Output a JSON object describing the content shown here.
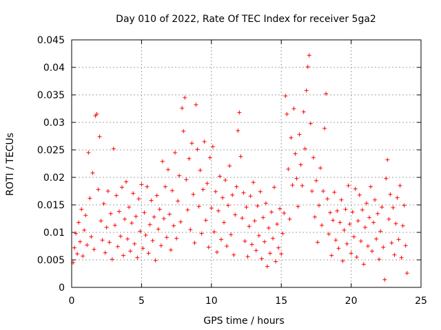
{
  "chart_data": {
    "type": "scatter",
    "title": "Day 010 of 2022, Rate Of TEC Index for receiver 5ga2",
    "xlabel": "GPS time / hours",
    "ylabel": "ROTI / TECUs",
    "xlim": [
      0,
      25
    ],
    "ylim": [
      0,
      0.045
    ],
    "xticks": [
      0,
      5,
      10,
      15,
      20,
      25
    ],
    "xtick_labels": [
      "0",
      "5",
      "10",
      "15",
      "20",
      "25"
    ],
    "yticks": [
      0,
      0.005,
      0.01,
      0.015,
      0.02,
      0.025,
      0.03,
      0.035,
      0.04,
      0.045
    ],
    "ytick_labels": [
      "0",
      "0.005",
      "0.01",
      "0.015",
      "0.02",
      "0.025",
      "0.03",
      "0.035",
      "0.04",
      "0.045"
    ],
    "grid": true,
    "marker": "+",
    "marker_color": "#ff0000",
    "series": [
      {
        "name": "ROTI",
        "points": [
          [
            0.1,
            0.0045
          ],
          [
            0.2,
            0.0072
          ],
          [
            0.3,
            0.0098
          ],
          [
            0.4,
            0.0061
          ],
          [
            0.5,
            0.0118
          ],
          [
            0.6,
            0.0083
          ],
          [
            0.7,
            0.0142
          ],
          [
            0.8,
            0.0057
          ],
          [
            0.9,
            0.0104
          ],
          [
            1.0,
            0.0131
          ],
          [
            1.1,
            0.0077
          ],
          [
            1.2,
            0.0245
          ],
          [
            1.3,
            0.0162
          ],
          [
            1.4,
            0.0092
          ],
          [
            1.5,
            0.0208
          ],
          [
            1.6,
            0.0069
          ],
          [
            1.7,
            0.0312
          ],
          [
            1.8,
            0.0315
          ],
          [
            1.9,
            0.0178
          ],
          [
            2.0,
            0.0274
          ],
          [
            2.1,
            0.0121
          ],
          [
            2.2,
            0.0086
          ],
          [
            2.3,
            0.0152
          ],
          [
            2.4,
            0.0063
          ],
          [
            2.5,
            0.0109
          ],
          [
            2.6,
            0.0175
          ],
          [
            2.7,
            0.0082
          ],
          [
            2.8,
            0.0134
          ],
          [
            2.9,
            0.0051
          ],
          [
            3.0,
            0.0252
          ],
          [
            3.1,
            0.0113
          ],
          [
            3.2,
            0.0167
          ],
          [
            3.3,
            0.0074
          ],
          [
            3.4,
            0.0138
          ],
          [
            3.5,
            0.0093
          ],
          [
            3.6,
            0.0182
          ],
          [
            3.7,
            0.0058
          ],
          [
            3.8,
            0.0124
          ],
          [
            3.9,
            0.0192
          ],
          [
            4.0,
            0.0088
          ],
          [
            4.1,
            0.0146
          ],
          [
            4.2,
            0.0066
          ],
          [
            4.3,
            0.0117
          ],
          [
            4.4,
            0.0171
          ],
          [
            4.5,
            0.0079
          ],
          [
            4.6,
            0.0129
          ],
          [
            4.7,
            0.0054
          ],
          [
            4.8,
            0.0161
          ],
          [
            4.9,
            0.0102
          ],
          [
            5.0,
            0.0187
          ],
          [
            5.1,
            0.0071
          ],
          [
            5.2,
            0.0136
          ],
          [
            5.3,
            0.0095
          ],
          [
            5.4,
            0.0183
          ],
          [
            5.5,
            0.0062
          ],
          [
            5.6,
            0.0114
          ],
          [
            5.7,
            0.0158
          ],
          [
            5.8,
            0.0085
          ],
          [
            5.9,
            0.0128
          ],
          [
            6.0,
            0.0049
          ],
          [
            6.1,
            0.0167
          ],
          [
            6.2,
            0.0106
          ],
          [
            6.3,
            0.0142
          ],
          [
            6.4,
            0.0076
          ],
          [
            6.5,
            0.0229
          ],
          [
            6.6,
            0.0125
          ],
          [
            6.7,
            0.0183
          ],
          [
            6.8,
            0.0091
          ],
          [
            6.9,
            0.0214
          ],
          [
            7.0,
            0.0133
          ],
          [
            7.1,
            0.0068
          ],
          [
            7.2,
            0.0176
          ],
          [
            7.3,
            0.0112
          ],
          [
            7.4,
            0.0245
          ],
          [
            7.5,
            0.0089
          ],
          [
            7.6,
            0.0157
          ],
          [
            7.7,
            0.0203
          ],
          [
            7.8,
            0.0119
          ],
          [
            7.9,
            0.0326
          ],
          [
            8.0,
            0.0284
          ],
          [
            8.1,
            0.0345
          ],
          [
            8.2,
            0.0196
          ],
          [
            8.3,
            0.0141
          ],
          [
            8.4,
            0.0234
          ],
          [
            8.5,
            0.0105
          ],
          [
            8.6,
            0.0262
          ],
          [
            8.7,
            0.0169
          ],
          [
            8.8,
            0.0081
          ],
          [
            8.9,
            0.0332
          ],
          [
            9.0,
            0.0251
          ],
          [
            9.1,
            0.0147
          ],
          [
            9.2,
            0.0213
          ],
          [
            9.3,
            0.0098
          ],
          [
            9.4,
            0.0178
          ],
          [
            9.5,
            0.0265
          ],
          [
            9.6,
            0.0122
          ],
          [
            9.7,
            0.0189
          ],
          [
            9.8,
            0.0073
          ],
          [
            9.9,
            0.0236
          ],
          [
            10.0,
            0.0144
          ],
          [
            10.1,
            0.0256
          ],
          [
            10.2,
            0.0101
          ],
          [
            10.3,
            0.0174
          ],
          [
            10.4,
            0.0064
          ],
          [
            10.5,
            0.0139
          ],
          [
            10.6,
            0.0202
          ],
          [
            10.7,
            0.0087
          ],
          [
            10.8,
            0.0163
          ],
          [
            10.9,
            0.0118
          ],
          [
            11.0,
            0.0195
          ],
          [
            11.1,
            0.0075
          ],
          [
            11.2,
            0.0149
          ],
          [
            11.3,
            0.0221
          ],
          [
            11.4,
            0.0096
          ],
          [
            11.5,
            0.0168
          ],
          [
            11.6,
            0.0059
          ],
          [
            11.7,
            0.0132
          ],
          [
            11.8,
            0.0183
          ],
          [
            11.9,
            0.0285
          ],
          [
            12.0,
            0.0318
          ],
          [
            12.1,
            0.0238
          ],
          [
            12.2,
            0.0126
          ],
          [
            12.3,
            0.0172
          ],
          [
            12.4,
            0.0084
          ],
          [
            12.5,
            0.0146
          ],
          [
            12.6,
            0.0056
          ],
          [
            12.7,
            0.0111
          ],
          [
            12.8,
            0.0166
          ],
          [
            12.9,
            0.0078
          ],
          [
            13.0,
            0.0191
          ],
          [
            13.1,
            0.0121
          ],
          [
            13.2,
            0.0067
          ],
          [
            13.3,
            0.0148
          ],
          [
            13.4,
            0.0094
          ],
          [
            13.5,
            0.0174
          ],
          [
            13.6,
            0.0052
          ],
          [
            13.7,
            0.0127
          ],
          [
            13.8,
            0.0083
          ],
          [
            13.9,
            0.0153
          ],
          [
            14.0,
            0.0038
          ],
          [
            14.1,
            0.0108
          ],
          [
            14.2,
            0.0062
          ],
          [
            14.3,
            0.0137
          ],
          [
            14.4,
            0.0089
          ],
          [
            14.5,
            0.0182
          ],
          [
            14.6,
            0.0047
          ],
          [
            14.7,
            0.0115
          ],
          [
            14.8,
            0.0072
          ],
          [
            14.9,
            0.0143
          ],
          [
            15.0,
            0.0061
          ],
          [
            15.1,
            0.0098
          ],
          [
            15.2,
            0.0135
          ],
          [
            15.3,
            0.0348
          ],
          [
            15.4,
            0.0315
          ],
          [
            15.5,
            0.0215
          ],
          [
            15.6,
            0.0124
          ],
          [
            15.7,
            0.0272
          ],
          [
            15.8,
            0.0186
          ],
          [
            15.9,
            0.0325
          ],
          [
            16.0,
            0.0243
          ],
          [
            16.1,
            0.0198
          ],
          [
            16.2,
            0.0147
          ],
          [
            16.3,
            0.0278
          ],
          [
            16.4,
            0.0223
          ],
          [
            16.5,
            0.0185
          ],
          [
            16.6,
            0.0319
          ],
          [
            16.7,
            0.0252
          ],
          [
            16.8,
            0.0358
          ],
          [
            16.9,
            0.0401
          ],
          [
            17.0,
            0.0422
          ],
          [
            17.1,
            0.0298
          ],
          [
            17.2,
            0.0175
          ],
          [
            17.3,
            0.0236
          ],
          [
            17.4,
            0.0128
          ],
          [
            17.5,
            0.0194
          ],
          [
            17.6,
            0.0082
          ],
          [
            17.7,
            0.0149
          ],
          [
            17.8,
            0.0217
          ],
          [
            17.9,
            0.0113
          ],
          [
            18.0,
            0.0175
          ],
          [
            18.1,
            0.0289
          ],
          [
            18.2,
            0.0352
          ],
          [
            18.3,
            0.0161
          ],
          [
            18.4,
            0.0097
          ],
          [
            18.5,
            0.0136
          ],
          [
            18.6,
            0.0058
          ],
          [
            18.7,
            0.0122
          ],
          [
            18.8,
            0.0173
          ],
          [
            18.9,
            0.0086
          ],
          [
            19.0,
            0.0139
          ],
          [
            19.1,
            0.0071
          ],
          [
            19.2,
            0.0118
          ],
          [
            19.3,
            0.0159
          ],
          [
            19.4,
            0.0048
          ],
          [
            19.5,
            0.0104
          ],
          [
            19.6,
            0.0142
          ],
          [
            19.7,
            0.0079
          ],
          [
            19.8,
            0.0185
          ],
          [
            19.9,
            0.0115
          ],
          [
            20.0,
            0.0062
          ],
          [
            20.1,
            0.0137
          ],
          [
            20.2,
            0.0092
          ],
          [
            20.3,
            0.0179
          ],
          [
            20.4,
            0.0055
          ],
          [
            20.5,
            0.0121
          ],
          [
            20.6,
            0.0168
          ],
          [
            20.7,
            0.0084
          ],
          [
            20.8,
            0.0141
          ],
          [
            20.9,
            0.0042
          ],
          [
            21.0,
            0.0109
          ],
          [
            21.1,
            0.0153
          ],
          [
            21.2,
            0.0075
          ],
          [
            21.3,
            0.0127
          ],
          [
            21.4,
            0.0183
          ],
          [
            21.5,
            0.0066
          ],
          [
            21.6,
            0.0118
          ],
          [
            21.7,
            0.0159
          ],
          [
            21.8,
            0.0088
          ],
          [
            21.9,
            0.0134
          ],
          [
            22.0,
            0.0051
          ],
          [
            22.1,
            0.0102
          ],
          [
            22.2,
            0.0146
          ],
          [
            22.3,
            0.0073
          ],
          [
            22.4,
            0.0014
          ],
          [
            22.5,
            0.0198
          ],
          [
            22.6,
            0.0232
          ],
          [
            22.7,
            0.0124
          ],
          [
            22.8,
            0.0169
          ],
          [
            22.9,
            0.0081
          ],
          [
            23.0,
            0.0145
          ],
          [
            23.1,
            0.0059
          ],
          [
            23.2,
            0.0116
          ],
          [
            23.3,
            0.0163
          ],
          [
            23.4,
            0.0087
          ],
          [
            23.5,
            0.0185
          ],
          [
            23.6,
            0.0054
          ],
          [
            23.7,
            0.0112
          ],
          [
            23.8,
            0.0149
          ],
          [
            23.9,
            0.0076
          ],
          [
            24.0,
            0.0026
          ]
        ]
      }
    ]
  }
}
